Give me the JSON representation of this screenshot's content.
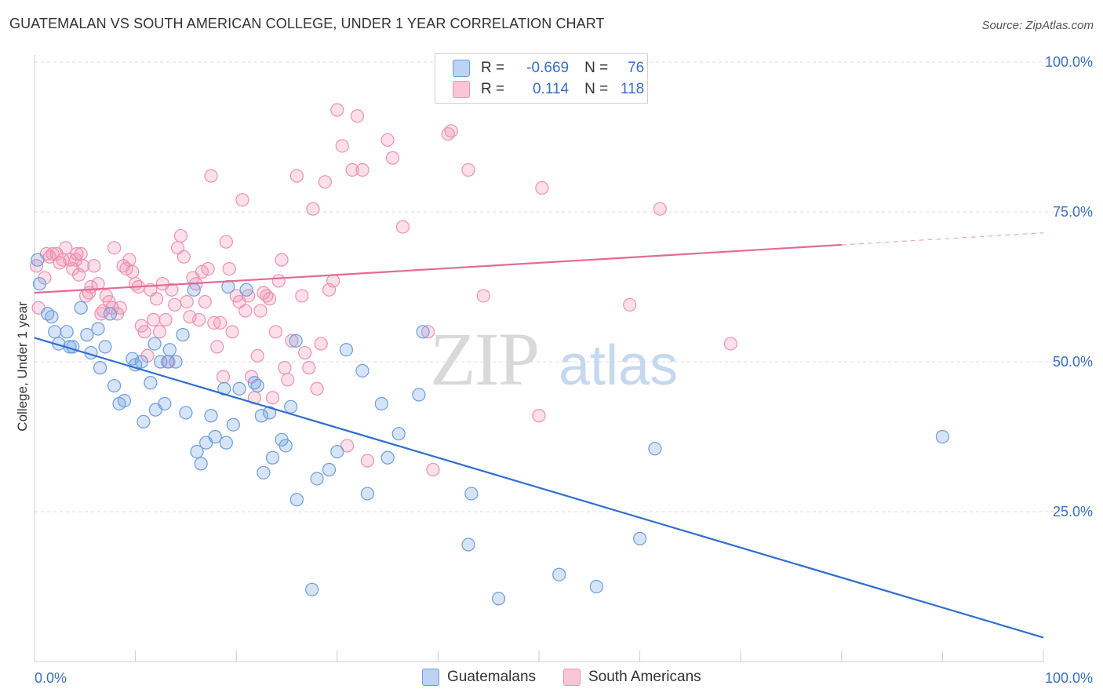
{
  "title": "GUATEMALAN VS SOUTH AMERICAN COLLEGE, UNDER 1 YEAR CORRELATION CHART",
  "source": "Source: ZipAtlas.com",
  "watermark": {
    "zip": "ZIP",
    "atlas": "atlas"
  },
  "legend": {
    "r_label": "R =",
    "n_label": "N =",
    "blue": {
      "r": "-0.669",
      "n": "76",
      "color": "#6b9de0"
    },
    "pink": {
      "r": "0.114",
      "n": "118",
      "color": "#f08fb1"
    }
  },
  "chart_data": {
    "type": "scatter",
    "title": "GUATEMALAN VS SOUTH AMERICAN COLLEGE, UNDER 1 YEAR CORRELATION CHART",
    "xlabel": "",
    "ylabel": "College, Under 1 year",
    "xlim": [
      0,
      100
    ],
    "ylim": [
      0,
      105
    ],
    "x_tick_labels": [
      "0.0%",
      "100.0%"
    ],
    "y_tick_labels": [
      "25.0%",
      "50.0%",
      "75.0%",
      "100.0%"
    ],
    "y_ticks": [
      25,
      50,
      75,
      100
    ],
    "grid": true,
    "legend_position": "bottom",
    "series": [
      {
        "name": "Guatemalans",
        "color": "#6b9de0",
        "line_color": "#2f6fd0",
        "trend": {
          "x": [
            0,
            100
          ],
          "y": [
            54,
            4
          ]
        },
        "points": [
          [
            0.3,
            67
          ],
          [
            0.5,
            63
          ],
          [
            1.3,
            58
          ],
          [
            1.7,
            57.5
          ],
          [
            2,
            55
          ],
          [
            2.4,
            53
          ],
          [
            3.2,
            55
          ],
          [
            3.5,
            52.5
          ],
          [
            3.8,
            52.5
          ],
          [
            4.6,
            59
          ],
          [
            5.2,
            54.5
          ],
          [
            5.6,
            51.5
          ],
          [
            6.3,
            55.5
          ],
          [
            6.5,
            49
          ],
          [
            7,
            52.5
          ],
          [
            7.5,
            58
          ],
          [
            7.9,
            46
          ],
          [
            8.4,
            43
          ],
          [
            8.9,
            43.5
          ],
          [
            9.7,
            50.5
          ],
          [
            10,
            49.5
          ],
          [
            10.6,
            50
          ],
          [
            10.8,
            40
          ],
          [
            11.5,
            46.5
          ],
          [
            11.9,
            53
          ],
          [
            12.5,
            50
          ],
          [
            12.9,
            43
          ],
          [
            13.2,
            50
          ],
          [
            13.4,
            52
          ],
          [
            14,
            50
          ],
          [
            14.7,
            54.5
          ],
          [
            15,
            41.5
          ],
          [
            15.8,
            62
          ],
          [
            16.1,
            35
          ],
          [
            16.5,
            33
          ],
          [
            17,
            36.5
          ],
          [
            17.5,
            41
          ],
          [
            17.9,
            37.5
          ],
          [
            18.8,
            45.5
          ],
          [
            19,
            36.5
          ],
          [
            19.2,
            62.5
          ],
          [
            19.7,
            39.5
          ],
          [
            20.3,
            45.5
          ],
          [
            21,
            62
          ],
          [
            21.8,
            46.5
          ],
          [
            22.1,
            46
          ],
          [
            22.5,
            41
          ],
          [
            22.7,
            31.5
          ],
          [
            23.3,
            41.5
          ],
          [
            23.6,
            34
          ],
          [
            24.5,
            37
          ],
          [
            24.9,
            36
          ],
          [
            25.4,
            42.5
          ],
          [
            25.9,
            53.5
          ],
          [
            26,
            27
          ],
          [
            27.5,
            12
          ],
          [
            28,
            30.5
          ],
          [
            29.2,
            32
          ],
          [
            30,
            35
          ],
          [
            30.9,
            52
          ],
          [
            32.5,
            48.5
          ],
          [
            33,
            28
          ],
          [
            34.4,
            43
          ],
          [
            35,
            34
          ],
          [
            36.1,
            38
          ],
          [
            38.1,
            44.5
          ],
          [
            38.5,
            55
          ],
          [
            43,
            19.5
          ],
          [
            43.3,
            28
          ],
          [
            46,
            10.5
          ],
          [
            52,
            14.5
          ],
          [
            55.7,
            12.5
          ],
          [
            60,
            20.5
          ],
          [
            61.5,
            35.5
          ],
          [
            90,
            37.5
          ],
          [
            12,
            42
          ]
        ]
      },
      {
        "name": "South Americans",
        "color": "#f08fb1",
        "line_color": "#e36a95",
        "trend": {
          "x": [
            0,
            80
          ],
          "y": [
            61.5,
            69.5
          ]
        },
        "trend_dashed": {
          "x": [
            80,
            100
          ],
          "y": [
            69.5,
            71.5
          ]
        },
        "points": [
          [
            0.2,
            66
          ],
          [
            0.4,
            59
          ],
          [
            1,
            64
          ],
          [
            1.2,
            68
          ],
          [
            1.5,
            67.5
          ],
          [
            1.8,
            68
          ],
          [
            2.2,
            68
          ],
          [
            2.5,
            66.5
          ],
          [
            2.8,
            67
          ],
          [
            3.1,
            69
          ],
          [
            3.5,
            67
          ],
          [
            3.8,
            65.5
          ],
          [
            4.1,
            67
          ],
          [
            4.2,
            68
          ],
          [
            4.4,
            64.5
          ],
          [
            4.6,
            68
          ],
          [
            4.8,
            66
          ],
          [
            5.1,
            61
          ],
          [
            5.4,
            61.5
          ],
          [
            5.6,
            62.5
          ],
          [
            5.9,
            66
          ],
          [
            6.3,
            63
          ],
          [
            6.6,
            58
          ],
          [
            6.8,
            58.5
          ],
          [
            7.1,
            61
          ],
          [
            7.4,
            60
          ],
          [
            7.7,
            59
          ],
          [
            7.9,
            69
          ],
          [
            8.2,
            58
          ],
          [
            8.5,
            59
          ],
          [
            8.8,
            66
          ],
          [
            9.1,
            65.5
          ],
          [
            9.4,
            67
          ],
          [
            9.7,
            65
          ],
          [
            10,
            63
          ],
          [
            10.3,
            62.5
          ],
          [
            10.6,
            56
          ],
          [
            10.9,
            55
          ],
          [
            11.2,
            51
          ],
          [
            11.5,
            62
          ],
          [
            11.8,
            57
          ],
          [
            12.1,
            60.5
          ],
          [
            12.4,
            55
          ],
          [
            12.7,
            63
          ],
          [
            13,
            57
          ],
          [
            13.3,
            50
          ],
          [
            13.6,
            62
          ],
          [
            13.9,
            59.5
          ],
          [
            14.2,
            69
          ],
          [
            14.5,
            71
          ],
          [
            14.8,
            67.5
          ],
          [
            15.1,
            60
          ],
          [
            15.4,
            57.5
          ],
          [
            15.7,
            64
          ],
          [
            16,
            63
          ],
          [
            16.3,
            57
          ],
          [
            16.6,
            65
          ],
          [
            16.9,
            60
          ],
          [
            17.2,
            65.5
          ],
          [
            17.5,
            81
          ],
          [
            17.8,
            56.5
          ],
          [
            18.1,
            52.5
          ],
          [
            18.4,
            56.5
          ],
          [
            18.7,
            47.5
          ],
          [
            19,
            70
          ],
          [
            19.3,
            65.5
          ],
          [
            19.6,
            55
          ],
          [
            20,
            61
          ],
          [
            20.3,
            60
          ],
          [
            20.6,
            77
          ],
          [
            20.9,
            58.5
          ],
          [
            21.2,
            61
          ],
          [
            21.5,
            47.5
          ],
          [
            21.8,
            44
          ],
          [
            22.1,
            51
          ],
          [
            22.4,
            58.5
          ],
          [
            22.7,
            61.5
          ],
          [
            23,
            61
          ],
          [
            23.3,
            60.5
          ],
          [
            23.6,
            44
          ],
          [
            23.9,
            55
          ],
          [
            24.2,
            63.5
          ],
          [
            24.5,
            67
          ],
          [
            24.8,
            49
          ],
          [
            25.1,
            47
          ],
          [
            25.5,
            53.5
          ],
          [
            26,
            81
          ],
          [
            26.5,
            61
          ],
          [
            26.8,
            51.5
          ],
          [
            27.2,
            49
          ],
          [
            27.6,
            75.5
          ],
          [
            28,
            45.5
          ],
          [
            28.4,
            53
          ],
          [
            28.8,
            80
          ],
          [
            29.2,
            62
          ],
          [
            29.6,
            63.5
          ],
          [
            30,
            92
          ],
          [
            30.5,
            86
          ],
          [
            31,
            36
          ],
          [
            31.5,
            82
          ],
          [
            32,
            91
          ],
          [
            32.5,
            82
          ],
          [
            33,
            33.5
          ],
          [
            35,
            87
          ],
          [
            35.5,
            84
          ],
          [
            36.5,
            72.5
          ],
          [
            39,
            55
          ],
          [
            39.5,
            32
          ],
          [
            41,
            88
          ],
          [
            41.3,
            88.5
          ],
          [
            43,
            82
          ],
          [
            44.5,
            61
          ],
          [
            46,
            100
          ],
          [
            50,
            41
          ],
          [
            50.3,
            79
          ],
          [
            59,
            59.5
          ],
          [
            62,
            75.5
          ],
          [
            69,
            53
          ]
        ]
      }
    ]
  },
  "bottom_legend": {
    "blue_label": "Guatemalans",
    "pink_label": "South Americans"
  }
}
